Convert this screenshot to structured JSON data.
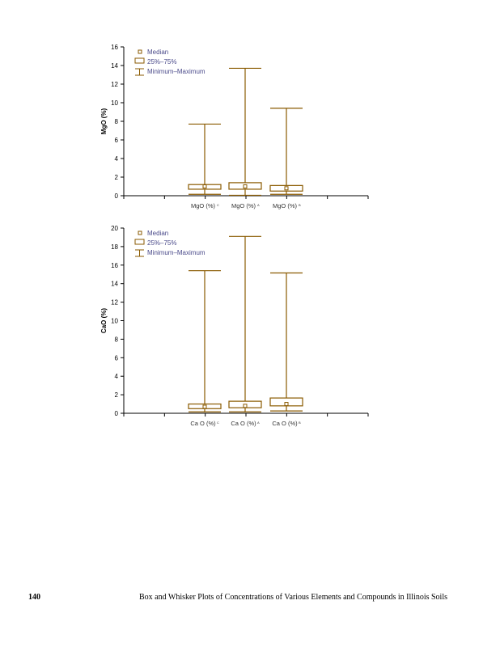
{
  "footer": {
    "page_number": "140",
    "title": "Box and Whisker Plots of Concentrations of Various Elements and Compounds in Illinois Soils"
  },
  "colors": {
    "box": "#8a5a00",
    "axis": "#000000",
    "legend_text": "#4a4a8a"
  },
  "chart_data": [
    {
      "type": "box",
      "ylabel": "MgO (%)",
      "ylim": [
        0,
        16
      ],
      "yticks": [
        0,
        2,
        4,
        6,
        8,
        10,
        12,
        14,
        16
      ],
      "legend": [
        "Median",
        "25%–75%",
        "Minimum–Maximum"
      ],
      "legend_position": "top-left",
      "categories": [
        {
          "label": "MgO (%)",
          "sup": "C"
        },
        {
          "label": "MgO (%)",
          "sup": "A"
        },
        {
          "label": "MgO (%)",
          "sup": "B"
        }
      ],
      "series": [
        {
          "min": 0.15,
          "q1": 0.7,
          "median": 1.0,
          "q3": 1.2,
          "max": 7.7
        },
        {
          "min": 0.05,
          "q1": 0.7,
          "median": 1.0,
          "q3": 1.4,
          "max": 13.7
        },
        {
          "min": 0.15,
          "q1": 0.5,
          "median": 0.8,
          "q3": 1.1,
          "max": 9.4
        }
      ]
    },
    {
      "type": "box",
      "ylabel": "CaO (%)",
      "ylim": [
        0,
        20
      ],
      "yticks": [
        0,
        2,
        4,
        6,
        8,
        10,
        12,
        14,
        16,
        18,
        20
      ],
      "legend": [
        "Median",
        "25%–75%",
        "Minimum–Maximum"
      ],
      "legend_position": "top-left",
      "categories": [
        {
          "label": "Ca O (%)",
          "sup": "C"
        },
        {
          "label": "Ca O (%)",
          "sup": "A"
        },
        {
          "label": "Ca O (%)",
          "sup": "B"
        }
      ],
      "series": [
        {
          "min": 0.15,
          "q1": 0.5,
          "median": 0.7,
          "q3": 1.0,
          "max": 15.4
        },
        {
          "min": 0.15,
          "q1": 0.6,
          "median": 0.8,
          "q3": 1.3,
          "max": 19.1
        },
        {
          "min": 0.25,
          "q1": 0.8,
          "median": 1.0,
          "q3": 1.65,
          "max": 15.15
        }
      ]
    }
  ]
}
